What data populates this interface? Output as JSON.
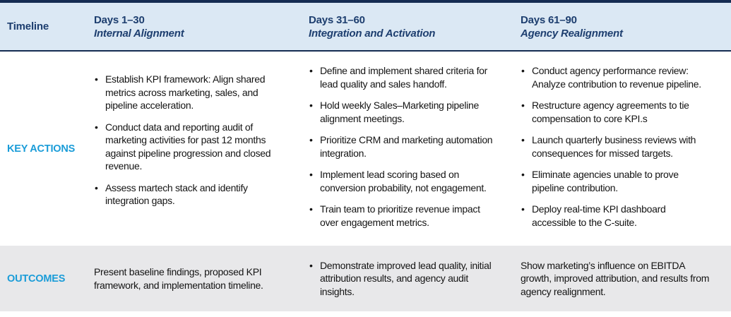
{
  "colors": {
    "navy_bar": "#152c52",
    "header_background": "#dbe8f4",
    "header_text_navy": "#1d3e6f",
    "accent_cyan": "#1a9cd8",
    "outcomes_background": "#e8e8ea",
    "body_text": "#141414"
  },
  "table": {
    "row_labels": {
      "timeline": "Timeline",
      "key_actions": "KEY ACTIONS",
      "outcomes": "OUTCOMES"
    },
    "phases": [
      {
        "days": "Days 1–30",
        "title": "Internal Alignment",
        "key_actions": [
          "Establish KPI framework: Align shared metrics across marketing, sales, and pipeline acceleration.",
          "Conduct data and reporting audit of marketing activities for past 12 months against pipeline progression and closed revenue.",
          "Assess martech stack and identify integration gaps."
        ],
        "outcome": "Present baseline findings, proposed KPI framework, and implementation timeline."
      },
      {
        "days": "Days 31–60",
        "title": "Integration and Activation",
        "key_actions": [
          "Define and implement shared criteria for lead quality and sales handoff.",
          "Hold weekly Sales–Marketing pipeline alignment meetings.",
          "Prioritize CRM and marketing automation integration.",
          "Implement lead scoring based on conversion probability, not engagement.",
          "Train team to prioritize revenue impact over engagement metrics."
        ],
        "outcome": "Demonstrate improved lead quality, initial attribution results, and agency audit insights."
      },
      {
        "days": "Days 61–90",
        "title": "Agency Realignment",
        "key_actions": [
          "Conduct agency performance review: Analyze contribution to revenue pipeline.",
          "Restructure agency agreements to tie compensation to core KPI.s",
          "Launch quarterly business reviews with consequences for missed targets.",
          "Eliminate agencies unable to prove pipeline contribution.",
          "Deploy real-time KPI dashboard accessible to the C-suite."
        ],
        "outcome": "Show marketing’s influence on EBITDA growth, improved attribution, and results from agency realignment."
      }
    ]
  }
}
